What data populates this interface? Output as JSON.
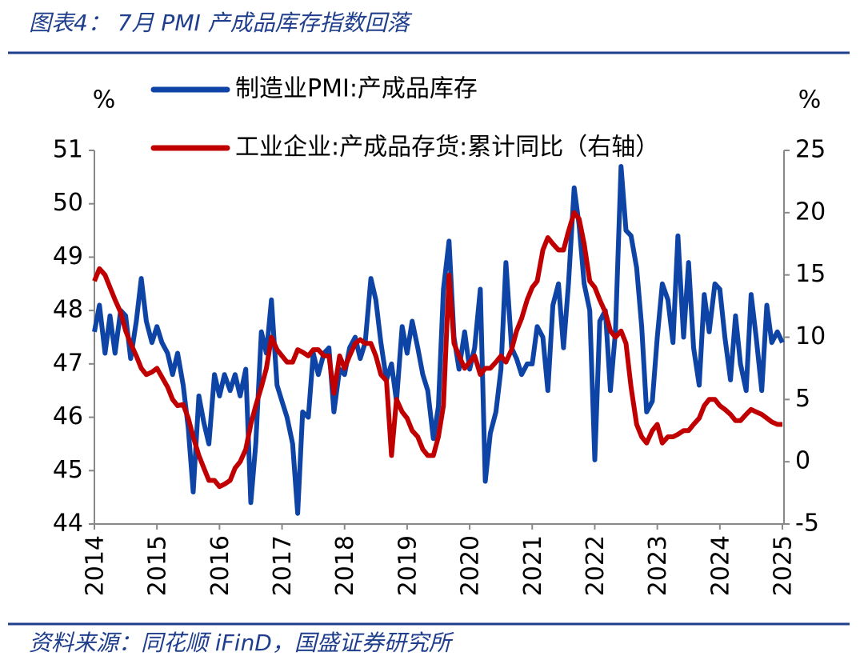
{
  "chart_data": {
    "type": "line",
    "title": "图表4： 7月 PMI 产成品库存指数回落",
    "source": "资料来源：同花顺 iFinD，国盛证券研究所",
    "ylabel": "%",
    "y2label": "%",
    "xlim": [
      2014,
      2025
    ],
    "xticks": [
      2014,
      2015,
      2016,
      2017,
      2018,
      2019,
      2020,
      2021,
      2022,
      2023,
      2024,
      2025
    ],
    "ylim": [
      44,
      51
    ],
    "yticks": [
      44,
      45,
      46,
      47,
      48,
      49,
      50,
      51
    ],
    "y2lim": [
      -5,
      25
    ],
    "y2ticks": [
      -5,
      0,
      5,
      10,
      15,
      20,
      25
    ],
    "x": [
      2014.0,
      2014.08,
      2014.17,
      2014.25,
      2014.33,
      2014.42,
      2014.5,
      2014.58,
      2014.67,
      2014.75,
      2014.83,
      2014.92,
      2015.0,
      2015.08,
      2015.17,
      2015.25,
      2015.33,
      2015.42,
      2015.5,
      2015.58,
      2015.67,
      2015.75,
      2015.83,
      2015.92,
      2016.0,
      2016.08,
      2016.17,
      2016.25,
      2016.33,
      2016.42,
      2016.5,
      2016.58,
      2016.67,
      2016.75,
      2016.83,
      2016.92,
      2017.0,
      2017.08,
      2017.17,
      2017.25,
      2017.33,
      2017.42,
      2017.5,
      2017.58,
      2017.67,
      2017.75,
      2017.83,
      2017.92,
      2018.0,
      2018.08,
      2018.17,
      2018.25,
      2018.33,
      2018.42,
      2018.5,
      2018.58,
      2018.67,
      2018.75,
      2018.83,
      2018.92,
      2019.0,
      2019.08,
      2019.17,
      2019.25,
      2019.33,
      2019.42,
      2019.5,
      2019.58,
      2019.67,
      2019.75,
      2019.83,
      2019.92,
      2020.0,
      2020.08,
      2020.17,
      2020.25,
      2020.33,
      2020.42,
      2020.5,
      2020.58,
      2020.67,
      2020.75,
      2020.83,
      2020.92,
      2021.0,
      2021.08,
      2021.17,
      2021.25,
      2021.33,
      2021.42,
      2021.5,
      2021.58,
      2021.67,
      2021.75,
      2021.83,
      2021.92,
      2022.0,
      2022.08,
      2022.17,
      2022.25,
      2022.33,
      2022.42,
      2022.5,
      2022.58,
      2022.67,
      2022.75,
      2022.83,
      2022.92,
      2023.0,
      2023.08,
      2023.17,
      2023.25,
      2023.33,
      2023.42,
      2023.5,
      2023.58,
      2023.67,
      2023.75,
      2023.83,
      2023.92,
      2024.0,
      2024.08,
      2024.17,
      2024.25,
      2024.33,
      2024.42,
      2024.5,
      2024.58,
      2024.67,
      2024.75,
      2024.83,
      2024.92,
      2025.0
    ],
    "series": [
      {
        "name": "制造业PMI:产成品库存",
        "color": "#0d44a6",
        "axis": "y",
        "values": [
          47.6,
          48.1,
          47.2,
          47.9,
          47.2,
          48.0,
          47.9,
          47.1,
          47.8,
          48.6,
          47.8,
          47.4,
          47.7,
          47.4,
          47.2,
          46.8,
          47.2,
          46.6,
          45.8,
          44.6,
          46.4,
          45.9,
          45.5,
          46.8,
          46.4,
          46.8,
          46.5,
          46.8,
          46.4,
          46.9,
          44.4,
          45.5,
          47.6,
          47.2,
          48.2,
          46.6,
          46.3,
          46.0,
          45.5,
          44.2,
          46.1,
          46.0,
          47.2,
          46.8,
          47.2,
          47.3,
          46.1,
          46.9,
          46.8,
          47.3,
          47.5,
          47.1,
          47.4,
          48.6,
          48.2,
          47.4,
          46.7,
          47.0,
          46.3,
          47.7,
          47.2,
          47.8,
          47.3,
          46.8,
          46.5,
          45.6,
          46.2,
          48.4,
          49.3,
          47.5,
          46.9,
          47.6,
          46.9,
          47.3,
          48.4,
          44.8,
          45.7,
          46.1,
          46.9,
          48.9,
          47.3,
          47.1,
          46.8,
          47.0,
          47.0,
          47.7,
          47.5,
          46.5,
          48.1,
          48.5,
          47.3,
          48.5,
          50.3,
          49.6,
          48.5,
          48.0,
          45.2,
          47.8,
          48.0,
          46.5,
          47.6,
          50.7,
          49.5,
          49.4,
          48.8,
          47.7,
          46.1,
          46.3,
          47.5,
          48.5,
          48.2,
          47.4,
          49.4,
          47.5,
          48.9,
          47.3,
          46.6,
          48.3,
          47.6,
          48.5,
          48.4,
          47.5,
          46.7,
          47.9,
          47.0,
          46.5,
          48.3,
          47.5,
          46.5,
          48.1,
          47.4,
          47.6,
          47.4
        ]
      },
      {
        "name": "工业企业:产成品存货:累计同比（右轴）",
        "color": "#c00000",
        "axis": "y2",
        "values": [
          14.5,
          15.5,
          15.0,
          14.0,
          13.0,
          12.0,
          10.5,
          9.5,
          8.5,
          7.5,
          7.0,
          7.2,
          7.5,
          6.8,
          6.0,
          5.0,
          4.5,
          4.6,
          3.5,
          2.0,
          0.5,
          -0.5,
          -1.5,
          -1.5,
          -2.0,
          -1.8,
          -1.5,
          -0.5,
          0,
          1.0,
          3.0,
          4.5,
          6.0,
          7.5,
          10.0,
          9.0,
          8.5,
          8.0,
          8.0,
          9.0,
          8.8,
          8.5,
          9.0,
          9.0,
          8.5,
          8.5,
          5.5,
          8.5,
          7.5,
          8.5,
          9.5,
          9.8,
          9.5,
          9.5,
          8.5,
          7.0,
          6.5,
          0.5,
          5.0,
          4.0,
          3.5,
          2.5,
          2.0,
          1.0,
          0.5,
          0.5,
          2.0,
          4.5,
          15.0,
          9.5,
          8.5,
          7.5,
          8.0,
          8.5,
          7.0,
          7.5,
          7.5,
          8.0,
          8.5,
          8.0,
          9.0,
          10.5,
          11.5,
          13.0,
          14.0,
          14.5,
          17.0,
          18.0,
          17.5,
          17.0,
          17.0,
          18.5,
          20.0,
          19.5,
          17.5,
          14.5,
          14.0,
          13.0,
          12.0,
          10.5,
          10.0,
          10.5,
          9.5,
          6.0,
          3.0,
          2.0,
          1.5,
          2.5,
          3.0,
          1.5,
          2.0,
          2.0,
          2.2,
          2.5,
          2.5,
          3.0,
          3.5,
          4.5,
          5.0,
          5.0,
          4.5,
          4.2,
          3.8,
          3.3,
          3.3,
          3.8,
          4.2,
          4.0,
          3.8,
          3.5,
          3.2,
          3.0,
          3.0
        ]
      }
    ]
  }
}
